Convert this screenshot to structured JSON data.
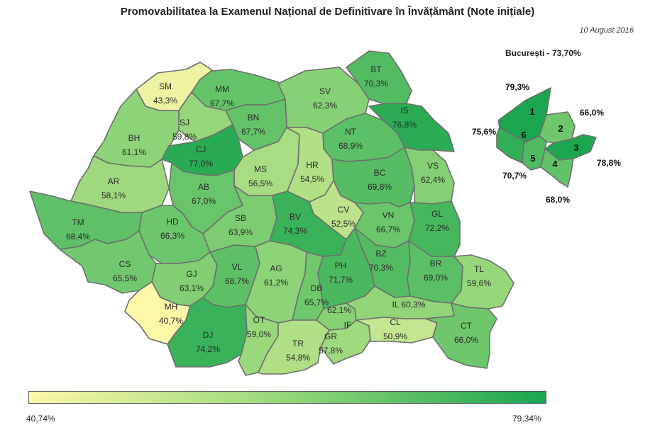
{
  "title": "Promovabilitatea la Examenul Național de Definitivare în Învățământ (Note inițiale)",
  "date": "10 August 2016",
  "bucharest_title": "București - 73,70%",
  "legend": {
    "min_label": "40,74%",
    "max_label": "79,34%",
    "min_color": "#fbf8a8",
    "max_color": "#1aa54e"
  },
  "scale": {
    "min": 40.74,
    "max": 79.34
  },
  "counties": [
    {
      "code": "SM",
      "value": 43.3,
      "label": "43,3%"
    },
    {
      "code": "MM",
      "value": 67.7,
      "label": "67,7%"
    },
    {
      "code": "SV",
      "value": 62.3,
      "label": "62,3%"
    },
    {
      "code": "BT",
      "value": 70.3,
      "label": "70,3%"
    },
    {
      "code": "IS",
      "value": 76.8,
      "label": "76,8%"
    },
    {
      "code": "BN",
      "value": 67.7,
      "label": "67,7%"
    },
    {
      "code": "SJ",
      "value": 59.8,
      "label": "59,8%"
    },
    {
      "code": "BH",
      "value": 61.1,
      "label": "61,1%"
    },
    {
      "code": "CJ",
      "value": 77.0,
      "label": "77,0%"
    },
    {
      "code": "NT",
      "value": 68.9,
      "label": "68,9%"
    },
    {
      "code": "MS",
      "value": 56.5,
      "label": "56,5%"
    },
    {
      "code": "HR",
      "value": 54.5,
      "label": "54,5%"
    },
    {
      "code": "BC",
      "value": 69.8,
      "label": "69,8%"
    },
    {
      "code": "VS",
      "value": 62.4,
      "label": "62,4%"
    },
    {
      "code": "AR",
      "value": 58.1,
      "label": "58,1%"
    },
    {
      "code": "AB",
      "value": 67.0,
      "label": "67,0%"
    },
    {
      "code": "TM",
      "value": 68.4,
      "label": "68,4%"
    },
    {
      "code": "HD",
      "value": 66.3,
      "label": "66,3%"
    },
    {
      "code": "SB",
      "value": 63.9,
      "label": "63,9%"
    },
    {
      "code": "BV",
      "value": 74.3,
      "label": "74,3%"
    },
    {
      "code": "CV",
      "value": 52.5,
      "label": "52,5%"
    },
    {
      "code": "VN",
      "value": 66.7,
      "label": "66,7%"
    },
    {
      "code": "GL",
      "value": 72.2,
      "label": "72,2%"
    },
    {
      "code": "CS",
      "value": 65.5,
      "label": "65,5%"
    },
    {
      "code": "GJ",
      "value": 63.1,
      "label": "63,1%"
    },
    {
      "code": "VL",
      "value": 68.7,
      "label": "68,7%"
    },
    {
      "code": "AG",
      "value": 61.2,
      "label": "61,2%"
    },
    {
      "code": "PH",
      "value": 71.7,
      "label": "71,7%"
    },
    {
      "code": "BZ",
      "value": 70.3,
      "label": "70,3%"
    },
    {
      "code": "BR",
      "value": 69.0,
      "label": "69,0%"
    },
    {
      "code": "TL",
      "value": 59.6,
      "label": "59,6%"
    },
    {
      "code": "MH",
      "value": 40.7,
      "label": "40,7%"
    },
    {
      "code": "DB",
      "value": 65.7,
      "label": "65,7%"
    },
    {
      "code": "IF",
      "value": 62.1,
      "label": "62,1%"
    },
    {
      "code": "IL",
      "value": 60.3,
      "label": "60,3%"
    },
    {
      "code": "DJ",
      "value": 74.2,
      "label": "74,2%"
    },
    {
      "code": "OT",
      "value": 59.0,
      "label": "59,0%"
    },
    {
      "code": "TR",
      "value": 54.8,
      "label": "54,8%"
    },
    {
      "code": "GR",
      "value": 57.8,
      "label": "57,8%"
    },
    {
      "code": "CL",
      "value": 50.9,
      "label": "50,9%"
    },
    {
      "code": "CT",
      "value": 66.0,
      "label": "66,0%"
    }
  ],
  "bucharest_sectors": [
    {
      "code": "1",
      "value": 79.3,
      "label": "79,3%"
    },
    {
      "code": "2",
      "value": 66.0,
      "label": "66,0%"
    },
    {
      "code": "3",
      "value": 78.8,
      "label": "78,8%"
    },
    {
      "code": "4",
      "value": 68.0,
      "label": "68,0%"
    },
    {
      "code": "5",
      "value": 70.7,
      "label": "70,7%"
    },
    {
      "code": "6",
      "value": 75.6,
      "label": "75,6%"
    }
  ]
}
